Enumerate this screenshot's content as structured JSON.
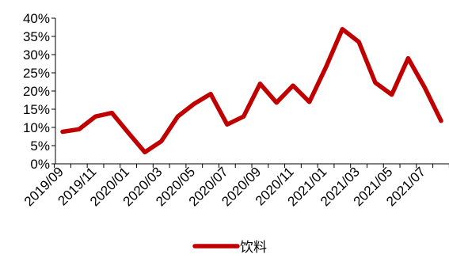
{
  "chart_data": {
    "type": "line",
    "title": "",
    "xlabel": "",
    "ylabel": "",
    "ylim": [
      0,
      40
    ],
    "yticks": [
      "0%",
      "5%",
      "10%",
      "15%",
      "20%",
      "25%",
      "30%",
      "35%",
      "40%"
    ],
    "x": [
      "2019/09",
      "2019/10",
      "2019/11",
      "2019/12",
      "2020/01",
      "2020/02",
      "2020/03",
      "2020/04",
      "2020/05",
      "2020/06",
      "2020/07",
      "2020/08",
      "2020/09",
      "2020/10",
      "2020/11",
      "2020/12",
      "2021/01",
      "2021/02",
      "2021/03",
      "2021/04",
      "2021/05",
      "2021/06",
      "2021/07",
      "2021/08"
    ],
    "xtick_labels": [
      "2019/09",
      "2019/11",
      "2020/01",
      "2020/03",
      "2020/05",
      "2020/07",
      "2020/09",
      "2020/11",
      "2021/01",
      "2021/03",
      "2021/05",
      "2021/07"
    ],
    "series": [
      {
        "name": "饮料",
        "color": "#C00000",
        "values": [
          8.8,
          9.5,
          13.0,
          14.0,
          8.5,
          3.2,
          6.2,
          13.0,
          16.5,
          19.2,
          10.8,
          13.0,
          22.0,
          16.8,
          21.5,
          17.0,
          26.5,
          37.0,
          33.5,
          22.3,
          19.0,
          29.0,
          21.0,
          11.8
        ]
      }
    ],
    "grid": false,
    "legend_position": "bottom"
  }
}
